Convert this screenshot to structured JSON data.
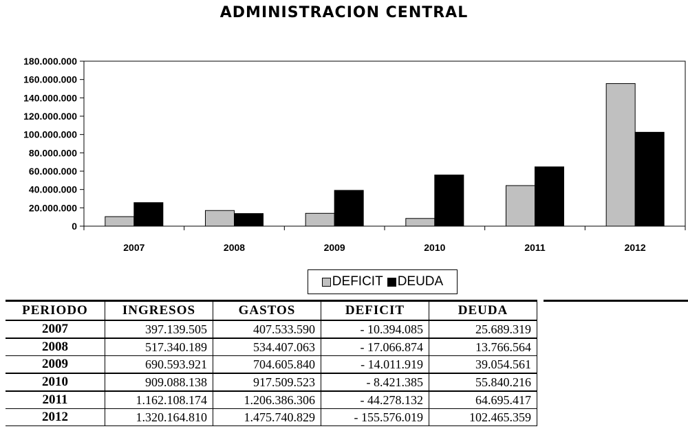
{
  "chart_data": {
    "type": "bar",
    "title": "ADMINISTRACION CENTRAL",
    "categories": [
      "2007",
      "2008",
      "2009",
      "2010",
      "2011",
      "2012"
    ],
    "series": [
      {
        "name": "DEFICIT",
        "values": [
          10394085,
          17066874,
          14011919,
          8421385,
          44278132,
          155576019
        ],
        "color": "#c0c0c0"
      },
      {
        "name": "DEUDA",
        "values": [
          25689319,
          13766564,
          39054561,
          55840216,
          64695417,
          102465359
        ],
        "color": "#000000"
      }
    ],
    "ylim": [
      0,
      180000000
    ],
    "yticks": [
      0,
      20000000,
      40000000,
      60000000,
      80000000,
      100000000,
      120000000,
      140000000,
      160000000,
      180000000
    ],
    "ytick_labels": [
      "0",
      "20.000.000",
      "40.000.000",
      "60.000.000",
      "80.000.000",
      "100.000.000",
      "120.000.000",
      "140.000.000",
      "160.000.000",
      "180.000.000"
    ],
    "legend_position": "bottom",
    "grid": false
  },
  "table": {
    "headers": [
      "PERIODO",
      "INGRESOS",
      "GASTOS",
      "DEFICIT",
      "DEUDA"
    ],
    "rows": [
      [
        "2007",
        "397.139.505",
        "407.533.590",
        "- 10.394.085",
        "25.689.319"
      ],
      [
        "2008",
        "517.340.189",
        "534.407.063",
        "- 17.066.874",
        "13.766.564"
      ],
      [
        "2009",
        "690.593.921",
        "704.605.840",
        "- 14.011.919",
        "39.054.561"
      ],
      [
        "2010",
        "909.088.138",
        "917.509.523",
        "-   8.421.385",
        "55.840.216"
      ],
      [
        "2011",
        "1.162.108.174",
        "1.206.386.306",
        "- 44.278.132",
        "64.695.417"
      ],
      [
        "2012",
        "1.320.164.810",
        "1.475.740.829",
        "- 155.576.019",
        "102.465.359"
      ]
    ]
  }
}
